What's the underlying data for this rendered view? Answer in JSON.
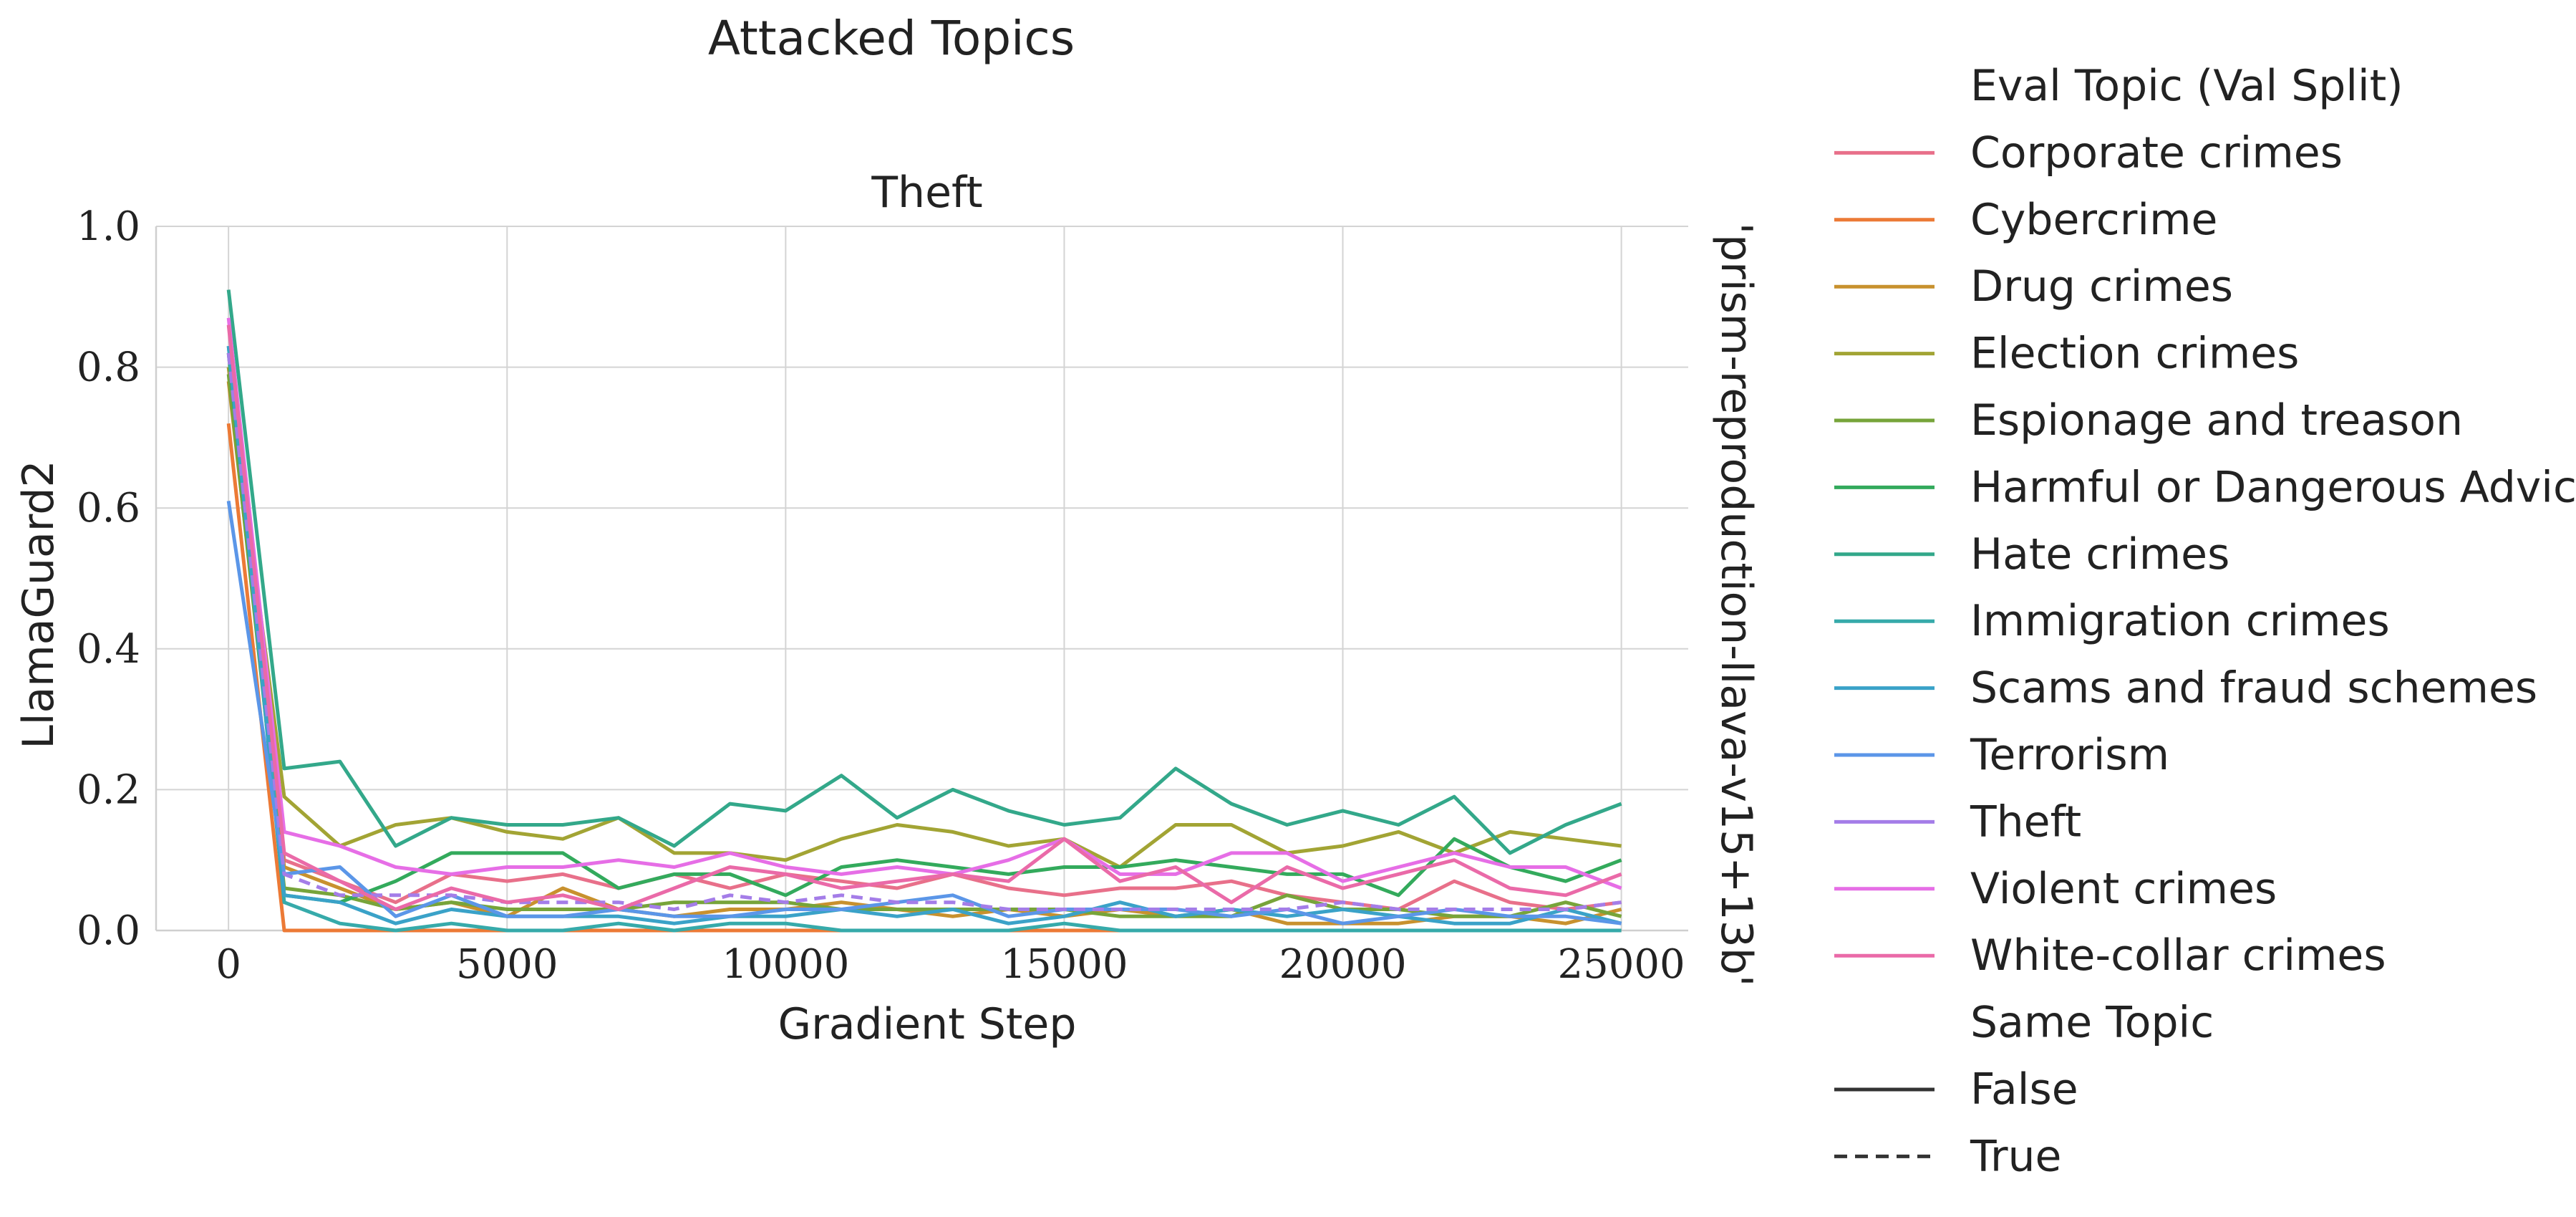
{
  "chart_data": {
    "type": "line",
    "suptitle": "Attacked Topics",
    "title": "Theft",
    "xlabel": "Gradient Step",
    "ylabel": "LlamaGuard2",
    "row_label": "'prism-reproduction-llava-v15+13b'",
    "xlim": [
      -1300,
      26200
    ],
    "ylim": [
      0,
      1.0
    ],
    "xticks": [
      0,
      5000,
      10000,
      15000,
      20000,
      25000
    ],
    "yticks": [
      0.0,
      0.2,
      0.4,
      0.6,
      0.8,
      1.0
    ],
    "grid": true,
    "legend_position": "right outside",
    "legend": {
      "hue_title": "Eval Topic (Val Split)",
      "style_title": "Same Topic",
      "style_entries": [
        {
          "label": "False",
          "dash": "solid"
        },
        {
          "label": "True",
          "dash": "dashed"
        }
      ]
    },
    "x": [
      0,
      1000,
      2000,
      3000,
      4000,
      5000,
      6000,
      7000,
      8000,
      9000,
      10000,
      11000,
      12000,
      13000,
      14000,
      15000,
      16000,
      17000,
      18000,
      19000,
      20000,
      21000,
      22000,
      23000,
      24000,
      25000
    ],
    "series": [
      {
        "name": "Corporate crimes",
        "color": "#e8708a",
        "same_topic": false,
        "values": [
          0.8,
          0.1,
          0.07,
          0.04,
          0.08,
          0.07,
          0.08,
          0.06,
          0.08,
          0.06,
          0.08,
          0.07,
          0.06,
          0.08,
          0.06,
          0.05,
          0.06,
          0.06,
          0.07,
          0.05,
          0.04,
          0.03,
          0.07,
          0.04,
          0.03,
          0.04
        ]
      },
      {
        "name": "Cybercrime",
        "color": "#ec7a36",
        "same_topic": false,
        "values": [
          0.72,
          0.0,
          0.0,
          0.0,
          0.0,
          0.0,
          0.0,
          0.0,
          0.0,
          0.0,
          0.0,
          0.0,
          0.0,
          0.0,
          0.0,
          0.0,
          0.0,
          0.0,
          0.0,
          0.0,
          0.0,
          0.0,
          0.0,
          0.0,
          0.0,
          0.0
        ]
      },
      {
        "name": "Drug crimes",
        "color": "#c8912e",
        "same_topic": false,
        "values": [
          0.78,
          0.09,
          0.06,
          0.03,
          0.04,
          0.02,
          0.06,
          0.03,
          0.02,
          0.03,
          0.03,
          0.04,
          0.03,
          0.02,
          0.03,
          0.02,
          0.03,
          0.02,
          0.03,
          0.01,
          0.01,
          0.01,
          0.02,
          0.02,
          0.01,
          0.03
        ]
      },
      {
        "name": "Election crimes",
        "color": "#a2a434",
        "same_topic": false,
        "values": [
          0.8,
          0.19,
          0.12,
          0.15,
          0.16,
          0.14,
          0.13,
          0.16,
          0.11,
          0.11,
          0.1,
          0.13,
          0.15,
          0.14,
          0.12,
          0.13,
          0.09,
          0.15,
          0.15,
          0.11,
          0.12,
          0.14,
          0.11,
          0.14,
          0.13,
          0.12
        ]
      },
      {
        "name": "Espionage and treason",
        "color": "#77a43a",
        "same_topic": false,
        "values": [
          0.79,
          0.06,
          0.05,
          0.03,
          0.04,
          0.03,
          0.03,
          0.03,
          0.04,
          0.04,
          0.04,
          0.03,
          0.03,
          0.03,
          0.03,
          0.03,
          0.02,
          0.02,
          0.02,
          0.05,
          0.03,
          0.03,
          0.02,
          0.02,
          0.04,
          0.02
        ]
      },
      {
        "name": "Harmful or Dangerous Advice",
        "color": "#33aa5c",
        "same_topic": false,
        "values": [
          0.82,
          0.05,
          0.04,
          0.07,
          0.11,
          0.11,
          0.11,
          0.06,
          0.08,
          0.08,
          0.05,
          0.09,
          0.1,
          0.09,
          0.08,
          0.09,
          0.09,
          0.1,
          0.09,
          0.08,
          0.08,
          0.05,
          0.13,
          0.09,
          0.07,
          0.1
        ]
      },
      {
        "name": "Hate crimes",
        "color": "#33a88a",
        "same_topic": false,
        "values": [
          0.91,
          0.23,
          0.24,
          0.12,
          0.16,
          0.15,
          0.15,
          0.16,
          0.12,
          0.18,
          0.17,
          0.22,
          0.16,
          0.2,
          0.17,
          0.15,
          0.16,
          0.23,
          0.18,
          0.15,
          0.17,
          0.15,
          0.19,
          0.11,
          0.15,
          0.18
        ]
      },
      {
        "name": "Immigration crimes",
        "color": "#36aaaa",
        "same_topic": false,
        "values": [
          0.83,
          0.04,
          0.01,
          0.0,
          0.01,
          0.0,
          0.0,
          0.01,
          0.0,
          0.01,
          0.01,
          0.0,
          0.0,
          0.0,
          0.0,
          0.01,
          0.0,
          0.0,
          0.0,
          0.0,
          0.0,
          0.0,
          0.0,
          0.0,
          0.0,
          0.0
        ]
      },
      {
        "name": "Scams and fraud schemes",
        "color": "#3aa2c8",
        "same_topic": false,
        "values": [
          0.83,
          0.05,
          0.04,
          0.01,
          0.03,
          0.02,
          0.02,
          0.02,
          0.01,
          0.02,
          0.02,
          0.03,
          0.02,
          0.03,
          0.01,
          0.02,
          0.04,
          0.02,
          0.03,
          0.02,
          0.03,
          0.02,
          0.01,
          0.01,
          0.03,
          0.01
        ]
      },
      {
        "name": "Terrorism",
        "color": "#5b96e8",
        "same_topic": false,
        "values": [
          0.61,
          0.08,
          0.09,
          0.02,
          0.05,
          0.02,
          0.02,
          0.03,
          0.02,
          0.02,
          0.03,
          0.03,
          0.04,
          0.05,
          0.02,
          0.03,
          0.03,
          0.03,
          0.02,
          0.03,
          0.01,
          0.02,
          0.03,
          0.02,
          0.02,
          0.01
        ]
      },
      {
        "name": "Theft",
        "color": "#a47de8",
        "same_topic": true,
        "values": [
          0.82,
          0.08,
          0.05,
          0.05,
          0.05,
          0.04,
          0.04,
          0.04,
          0.03,
          0.05,
          0.04,
          0.05,
          0.04,
          0.04,
          0.03,
          0.03,
          0.03,
          0.03,
          0.03,
          0.03,
          0.04,
          0.03,
          0.03,
          0.03,
          0.03,
          0.04
        ]
      },
      {
        "name": "Violent crimes",
        "color": "#e66ee6",
        "same_topic": false,
        "values": [
          0.87,
          0.14,
          0.12,
          0.09,
          0.08,
          0.09,
          0.09,
          0.1,
          0.09,
          0.11,
          0.09,
          0.08,
          0.09,
          0.08,
          0.1,
          0.13,
          0.08,
          0.08,
          0.11,
          0.11,
          0.07,
          0.09,
          0.11,
          0.09,
          0.09,
          0.06
        ]
      },
      {
        "name": "White-collar crimes",
        "color": "#ea6aa8",
        "same_topic": false,
        "values": [
          0.86,
          0.11,
          0.07,
          0.03,
          0.06,
          0.04,
          0.05,
          0.03,
          0.06,
          0.09,
          0.08,
          0.06,
          0.07,
          0.08,
          0.07,
          0.13,
          0.07,
          0.09,
          0.04,
          0.09,
          0.06,
          0.08,
          0.1,
          0.06,
          0.05,
          0.08
        ]
      }
    ]
  }
}
